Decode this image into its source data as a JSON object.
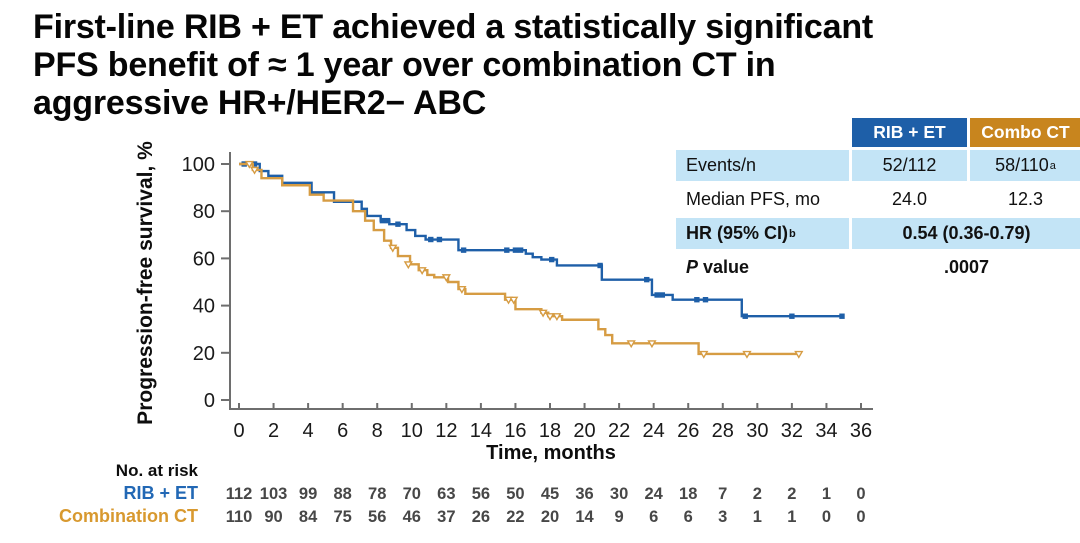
{
  "slide": {
    "title_lines": [
      "First-line RIB + ET achieved a statistically significant",
      "PFS benefit of ≈ 1 year over combination CT in",
      "aggressive HR+/HER2− ABC"
    ]
  },
  "colors": {
    "rib_blue": "#1E5FA8",
    "rib_blue_label": "#2268B5",
    "ct_orange_curve": "#D69C43",
    "ct_orange_header": "#C8851E",
    "ct_orange_label": "#D8992F",
    "row_lightblue": "#C3E4F6",
    "axis_gray": "#6E6E6E",
    "risk_number_gray": "#474747"
  },
  "stats_table": {
    "col_headers": [
      "RIB + ET",
      "Combo CT"
    ],
    "rows": {
      "events": {
        "label": "Events/n",
        "rib": "52/112",
        "ct": "58/110",
        "ct_sup": "a"
      },
      "median": {
        "label": "Median PFS, mo",
        "rib": "24.0",
        "ct": "12.3"
      },
      "hr": {
        "label": "HR (95% CI)",
        "label_sup": "b",
        "value": "0.54 (0.36-0.79)"
      },
      "pvalue": {
        "label_italic": "P",
        "label_rest": "value",
        "value": ".0007"
      }
    }
  },
  "chart_data": {
    "type": "line",
    "subtype": "kaplan-meier-step",
    "xlabel": "Time, months",
    "ylabel": "Progression-free survival, %",
    "xlim": [
      0,
      36
    ],
    "ylim": [
      0,
      100
    ],
    "xticks": [
      0,
      2,
      4,
      6,
      8,
      10,
      12,
      14,
      16,
      18,
      20,
      22,
      24,
      26,
      28,
      30,
      32,
      34,
      36
    ],
    "yticks": [
      0,
      20,
      40,
      60,
      80,
      100
    ],
    "grid": false,
    "series": [
      {
        "name": "RIB + ET",
        "color": "#1E5FA8",
        "marker": "square-filled",
        "steps": [
          [
            0,
            100
          ],
          [
            1.2,
            97
          ],
          [
            1.7,
            95
          ],
          [
            2.5,
            92
          ],
          [
            4.2,
            88
          ],
          [
            5.5,
            84
          ],
          [
            7.1,
            81
          ],
          [
            7.4,
            78
          ],
          [
            8.2,
            76
          ],
          [
            8.7,
            74.5
          ],
          [
            9.7,
            72
          ],
          [
            10.2,
            69.5
          ],
          [
            10.8,
            68
          ],
          [
            12.7,
            63.5
          ],
          [
            16.6,
            62
          ],
          [
            17.0,
            60.5
          ],
          [
            17.5,
            59.5
          ],
          [
            18.4,
            57
          ],
          [
            21.0,
            51
          ],
          [
            23.9,
            44.5
          ],
          [
            25.1,
            42.5
          ],
          [
            29.1,
            35.5
          ]
        ],
        "end_time": 35.0,
        "censors": [
          [
            0.3,
            100
          ],
          [
            0.9,
            100
          ],
          [
            8.3,
            76
          ],
          [
            8.6,
            76
          ],
          [
            9.2,
            74.5
          ],
          [
            11.1,
            68
          ],
          [
            11.6,
            68
          ],
          [
            13.0,
            63.5
          ],
          [
            15.5,
            63.5
          ],
          [
            16.0,
            63.5
          ],
          [
            16.3,
            63.5
          ],
          [
            18.1,
            59.5
          ],
          [
            20.9,
            57
          ],
          [
            23.6,
            51
          ],
          [
            24.2,
            44.5
          ],
          [
            24.5,
            44.5
          ],
          [
            26.5,
            42.5
          ],
          [
            27.0,
            42.5
          ],
          [
            29.3,
            35.5
          ],
          [
            32.0,
            35.5
          ],
          [
            34.9,
            35.5
          ]
        ]
      },
      {
        "name": "Combination CT",
        "color": "#D69C43",
        "marker": "triangle-open",
        "steps": [
          [
            0,
            100
          ],
          [
            0.8,
            97.5
          ],
          [
            1.3,
            94
          ],
          [
            2.5,
            91
          ],
          [
            4.1,
            87
          ],
          [
            4.9,
            84.5
          ],
          [
            6.6,
            80
          ],
          [
            7.3,
            76
          ],
          [
            7.8,
            72
          ],
          [
            8.4,
            67.5
          ],
          [
            8.8,
            64.5
          ],
          [
            9.2,
            61
          ],
          [
            9.9,
            57.5
          ],
          [
            10.4,
            55
          ],
          [
            10.9,
            53
          ],
          [
            11.3,
            52
          ],
          [
            12.1,
            50
          ],
          [
            12.7,
            47
          ],
          [
            13.1,
            45
          ],
          [
            15.4,
            42.5
          ],
          [
            16.0,
            38.5
          ],
          [
            17.5,
            37
          ],
          [
            17.9,
            35.5
          ],
          [
            18.7,
            34
          ],
          [
            20.8,
            30
          ],
          [
            21.2,
            27.5
          ],
          [
            21.6,
            24
          ],
          [
            26.6,
            19.5
          ]
        ],
        "end_time": 32.4,
        "censors": [
          [
            0.6,
            100
          ],
          [
            0.9,
            97.5
          ],
          [
            8.9,
            64.5
          ],
          [
            9.8,
            57.5
          ],
          [
            10.6,
            55
          ],
          [
            12.0,
            52
          ],
          [
            12.9,
            47
          ],
          [
            15.6,
            42.5
          ],
          [
            15.9,
            42.5
          ],
          [
            17.6,
            37
          ],
          [
            18.0,
            35.5
          ],
          [
            18.4,
            35.5
          ],
          [
            22.7,
            24
          ],
          [
            23.9,
            24
          ],
          [
            26.9,
            19.5
          ],
          [
            29.4,
            19.5
          ],
          [
            32.4,
            19.5
          ]
        ]
      }
    ]
  },
  "risk_table": {
    "heading": "No. at risk",
    "time_points": [
      0,
      2,
      4,
      6,
      8,
      10,
      12,
      14,
      16,
      18,
      20,
      22,
      24,
      26,
      28,
      30,
      32,
      34,
      36
    ],
    "rows": [
      {
        "label": "RIB + ET",
        "values": [
          112,
          103,
          99,
          88,
          78,
          70,
          63,
          56,
          50,
          45,
          36,
          30,
          24,
          18,
          7,
          2,
          2,
          1,
          0
        ]
      },
      {
        "label": "Combination CT",
        "values": [
          110,
          90,
          84,
          75,
          56,
          46,
          37,
          26,
          22,
          20,
          14,
          9,
          6,
          6,
          3,
          1,
          1,
          0,
          0
        ]
      }
    ]
  }
}
